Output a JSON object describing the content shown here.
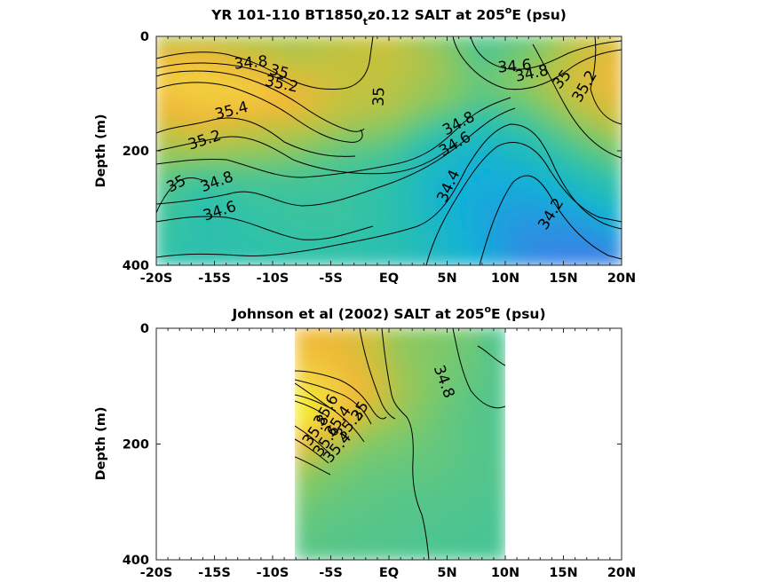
{
  "chart_data": [
    {
      "type": "heatmap",
      "title": "YR 101-110 BT1850",
      "title_sub": "t",
      "title_rest": "z0.12 SALT at 205",
      "title_sup": "o",
      "title_end": "E (psu)",
      "ylabel": "Depth (m)",
      "x_ticks": [
        "-20S",
        "-15S",
        "-10S",
        "-5S",
        "EQ",
        "5N",
        "10N",
        "15N",
        "20N"
      ],
      "x_tick_values": [
        -20,
        -15,
        -10,
        -5,
        0,
        5,
        10,
        15,
        20
      ],
      "y_ticks": [
        "0",
        "200",
        "400"
      ],
      "y_tick_values": [
        0,
        200,
        400
      ],
      "xlim": [
        -20,
        20
      ],
      "ylim": [
        400,
        0
      ],
      "colormap": [
        "#3b80e6",
        "#10b0d8",
        "#30c2a8",
        "#7cc96a",
        "#c4c23e",
        "#f0b838",
        "#f2d640",
        "#f8fa10"
      ],
      "color_range": [
        34.0,
        35.8
      ],
      "grid_depths": [
        0,
        40,
        80,
        120,
        160,
        200,
        240,
        280,
        320,
        360,
        400
      ],
      "grid_lats": [
        -20,
        -16,
        -12,
        -8,
        -4,
        0,
        4,
        8,
        12,
        16,
        20
      ],
      "salinity_grid": [
        [
          34.9,
          34.9,
          34.92,
          34.95,
          35.0,
          35.05,
          34.78,
          34.6,
          34.68,
          34.95,
          35.12
        ],
        [
          35.3,
          35.35,
          35.1,
          34.96,
          35.02,
          35.04,
          34.92,
          34.62,
          34.78,
          35.05,
          35.28
        ],
        [
          35.45,
          35.5,
          35.46,
          35.2,
          35.05,
          35.0,
          34.88,
          34.7,
          34.85,
          35.1,
          35.3
        ],
        [
          35.3,
          35.42,
          35.42,
          35.28,
          35.02,
          34.98,
          34.8,
          34.62,
          34.72,
          35.0,
          35.2
        ],
        [
          35.05,
          35.2,
          35.05,
          35.02,
          34.92,
          34.82,
          34.58,
          34.45,
          34.55,
          34.78,
          35.0
        ],
        [
          34.9,
          34.92,
          34.88,
          34.82,
          34.68,
          34.62,
          34.4,
          34.32,
          34.4,
          34.6,
          34.78
        ],
        [
          34.72,
          34.62,
          34.65,
          34.62,
          34.58,
          34.52,
          34.35,
          34.25,
          34.3,
          34.45,
          34.58
        ],
        [
          34.62,
          34.5,
          34.55,
          34.55,
          34.55,
          34.5,
          34.32,
          34.22,
          34.2,
          34.3,
          34.45
        ],
        [
          34.58,
          34.48,
          34.52,
          34.55,
          34.55,
          34.5,
          34.35,
          34.2,
          34.12,
          34.15,
          34.3
        ],
        [
          34.55,
          34.48,
          34.5,
          34.52,
          34.52,
          34.48,
          34.38,
          34.22,
          34.08,
          34.05,
          34.12
        ],
        [
          34.5,
          34.48,
          34.5,
          34.5,
          34.5,
          34.45,
          34.38,
          34.25,
          34.05,
          33.98,
          34.0
        ]
      ],
      "contour_labels": [
        "34.8",
        "35",
        "35.2",
        "35.4",
        "35.2",
        "35",
        "34.8",
        "34.6",
        "35",
        "34.8",
        "34.6",
        "34.4",
        "34.6",
        "34.8",
        "35",
        "35.2",
        "34.2"
      ]
    },
    {
      "type": "heatmap",
      "title": "Johnson et al (2002) SALT at 205",
      "title_sup": "o",
      "title_end": "E (psu)",
      "ylabel": "Depth (m)",
      "x_ticks": [
        "-20S",
        "-15S",
        "-10S",
        "-5S",
        "EQ",
        "5N",
        "10N",
        "15N",
        "20N"
      ],
      "x_tick_values": [
        -20,
        -15,
        -10,
        -5,
        0,
        5,
        10,
        15,
        20
      ],
      "y_ticks": [
        "0",
        "200",
        "400"
      ],
      "y_tick_values": [
        0,
        200,
        400
      ],
      "xlim": [
        -20,
        20
      ],
      "ylim": [
        400,
        0
      ],
      "data_xlim": [
        -8,
        10
      ],
      "colormap": [
        "#3b80e6",
        "#10b0d8",
        "#30c2a8",
        "#7cc96a",
        "#c4c23e",
        "#f0b838",
        "#f2d640",
        "#f8fa10"
      ],
      "color_range": [
        34.0,
        35.8
      ],
      "grid_depths": [
        0,
        40,
        80,
        120,
        160,
        200,
        240,
        280,
        320,
        360,
        400
      ],
      "grid_lats": [
        -8,
        -5,
        -2,
        1,
        4,
        7,
        10
      ],
      "salinity_grid": [
        [
          35.3,
          35.25,
          35.15,
          34.85,
          34.8,
          34.75,
          34.55
        ],
        [
          35.38,
          35.3,
          35.12,
          34.85,
          34.78,
          34.72,
          34.6
        ],
        [
          35.5,
          35.42,
          35.2,
          34.9,
          34.78,
          34.7,
          34.62
        ],
        [
          35.7,
          35.55,
          35.25,
          34.9,
          34.76,
          34.66,
          34.62
        ],
        [
          35.75,
          35.5,
          35.0,
          34.85,
          34.72,
          34.65,
          34.62
        ],
        [
          35.3,
          35.0,
          34.8,
          34.75,
          34.7,
          34.65,
          34.62
        ],
        [
          34.95,
          34.8,
          34.72,
          34.7,
          34.68,
          34.64,
          34.62
        ],
        [
          34.8,
          34.72,
          34.68,
          34.66,
          34.65,
          34.63,
          34.62
        ],
        [
          34.72,
          34.68,
          34.66,
          34.64,
          34.63,
          34.62,
          34.6
        ],
        [
          34.68,
          34.65,
          34.64,
          34.63,
          34.62,
          34.6,
          34.6
        ],
        [
          34.66,
          34.64,
          34.63,
          34.62,
          34.61,
          34.6,
          34.6
        ]
      ],
      "contour_labels": [
        "34.8",
        "35.6",
        "35.4",
        "35.2",
        "35",
        "35.8",
        "35.6",
        "35.4"
      ]
    }
  ]
}
